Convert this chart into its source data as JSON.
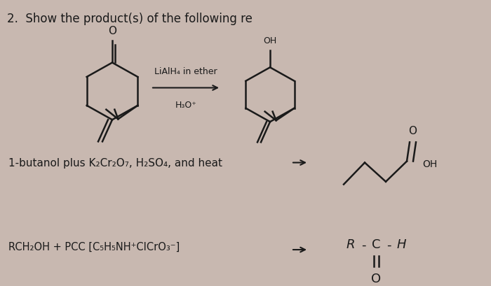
{
  "title": "2.  Show the product(s) of the following re",
  "title_fontsize": 12,
  "bg_color": "#c8b8b0",
  "text_color": "#1a1a1a",
  "reaction1_reagent_top": "LiAlH₄ in ether",
  "reaction1_reagent_bot": "H₃O⁺",
  "reaction2_text": "1-butanol plus K₂Cr₂O₇, H₂SO₄, and heat",
  "reaction3_text": "RCH₂OH + PCC [C₅H₅NH⁺CICrO₃⁻]"
}
